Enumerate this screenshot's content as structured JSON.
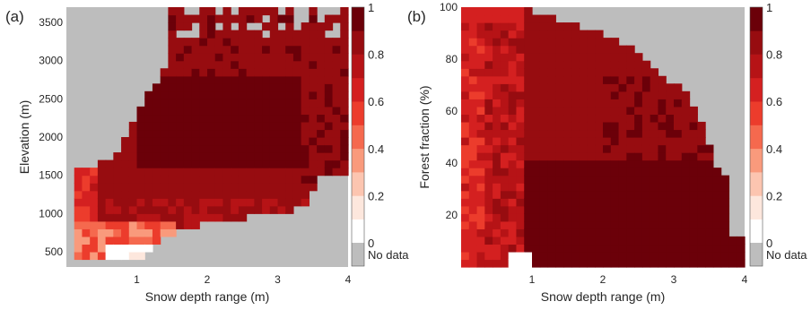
{
  "colorbar": {
    "tick_labels": [
      "1",
      "0.8",
      "0.6",
      "0.4",
      "0.2",
      "0"
    ],
    "nodata_label": "No data",
    "colors": [
      "#ffffff",
      "#fde7dd",
      "#fcc5b0",
      "#f99a7c",
      "#f5694e",
      "#ec3c2c",
      "#d42020",
      "#b61316",
      "#970c10",
      "#6b0009"
    ],
    "nodata_color": "#bdbdbd"
  },
  "chart_data": [
    {
      "panel_label": "(a)",
      "type": "heatmap",
      "xlabel": "Snow depth range (m)",
      "ylabel": "Elevation (m)",
      "xlim": [
        0,
        4
      ],
      "ylim": [
        300,
        3700
      ],
      "x_ticks": [
        "1",
        "2",
        "3",
        "4"
      ],
      "y_ticks": [
        "500",
        "1000",
        "1500",
        "2000",
        "2500",
        "3000",
        "3500"
      ],
      "description_of_field": "fraction value per cell; core plateau ~0.95 for 1.1–3.3 m and 1700–2700 m; lighter values at low elevation and small depth range",
      "regions": [
        {
          "x": [
            0.0,
            1.0
          ],
          "y": [
            300,
            600
          ],
          "value": 0.45
        },
        {
          "x": [
            0.6,
            1.2
          ],
          "y": [
            450,
            650
          ],
          "value": 0.05
        },
        {
          "x": [
            0.3,
            1.5
          ],
          "y": [
            600,
            900
          ],
          "value": 0.35
        },
        {
          "x": [
            0.0,
            2.0
          ],
          "y": [
            800,
            1200
          ],
          "value": 0.72
        },
        {
          "x": [
            1.5,
            3.4
          ],
          "y": [
            900,
            1300
          ],
          "value": 0.82
        },
        {
          "x": [
            0.4,
            2.5
          ],
          "y": [
            1200,
            1600
          ],
          "value": 0.85
        },
        {
          "x": [
            1.0,
            3.4
          ],
          "y": [
            1600,
            2800
          ],
          "value": 0.95
        },
        {
          "x": [
            1.2,
            4.0
          ],
          "y": [
            2700,
            3700
          ],
          "value": 0.82
        }
      ]
    },
    {
      "panel_label": "(b)",
      "type": "heatmap",
      "xlabel": "Snow depth range (m)",
      "ylabel": "Forest fraction (%)",
      "xlim": [
        0,
        4
      ],
      "ylim": [
        0,
        100
      ],
      "x_ticks": [
        "1",
        "2",
        "3",
        "4"
      ],
      "y_ticks": [
        "20",
        "40",
        "60",
        "80",
        "100"
      ],
      "description_of_field": "fraction value per cell; high values (~0.95) at low forest fraction and larger depth range; lighter values at very small depth range",
      "regions": [
        {
          "x": [
            0.0,
            0.4
          ],
          "y": [
            0,
            100
          ],
          "value": 0.55
        },
        {
          "x": [
            0.4,
            0.9
          ],
          "y": [
            0,
            95
          ],
          "value": 0.7
        },
        {
          "x": [
            0.9,
            2.8
          ],
          "y": [
            60,
            95
          ],
          "value": 0.85
        },
        {
          "x": [
            1.0,
            4.0
          ],
          "y": [
            0,
            40
          ],
          "value": 0.95
        },
        {
          "x": [
            2.0,
            3.6
          ],
          "y": [
            40,
            75
          ],
          "value": 0.9
        },
        {
          "x": [
            0.7,
            0.9
          ],
          "y": [
            0,
            5
          ],
          "value": 0.05
        }
      ]
    }
  ]
}
